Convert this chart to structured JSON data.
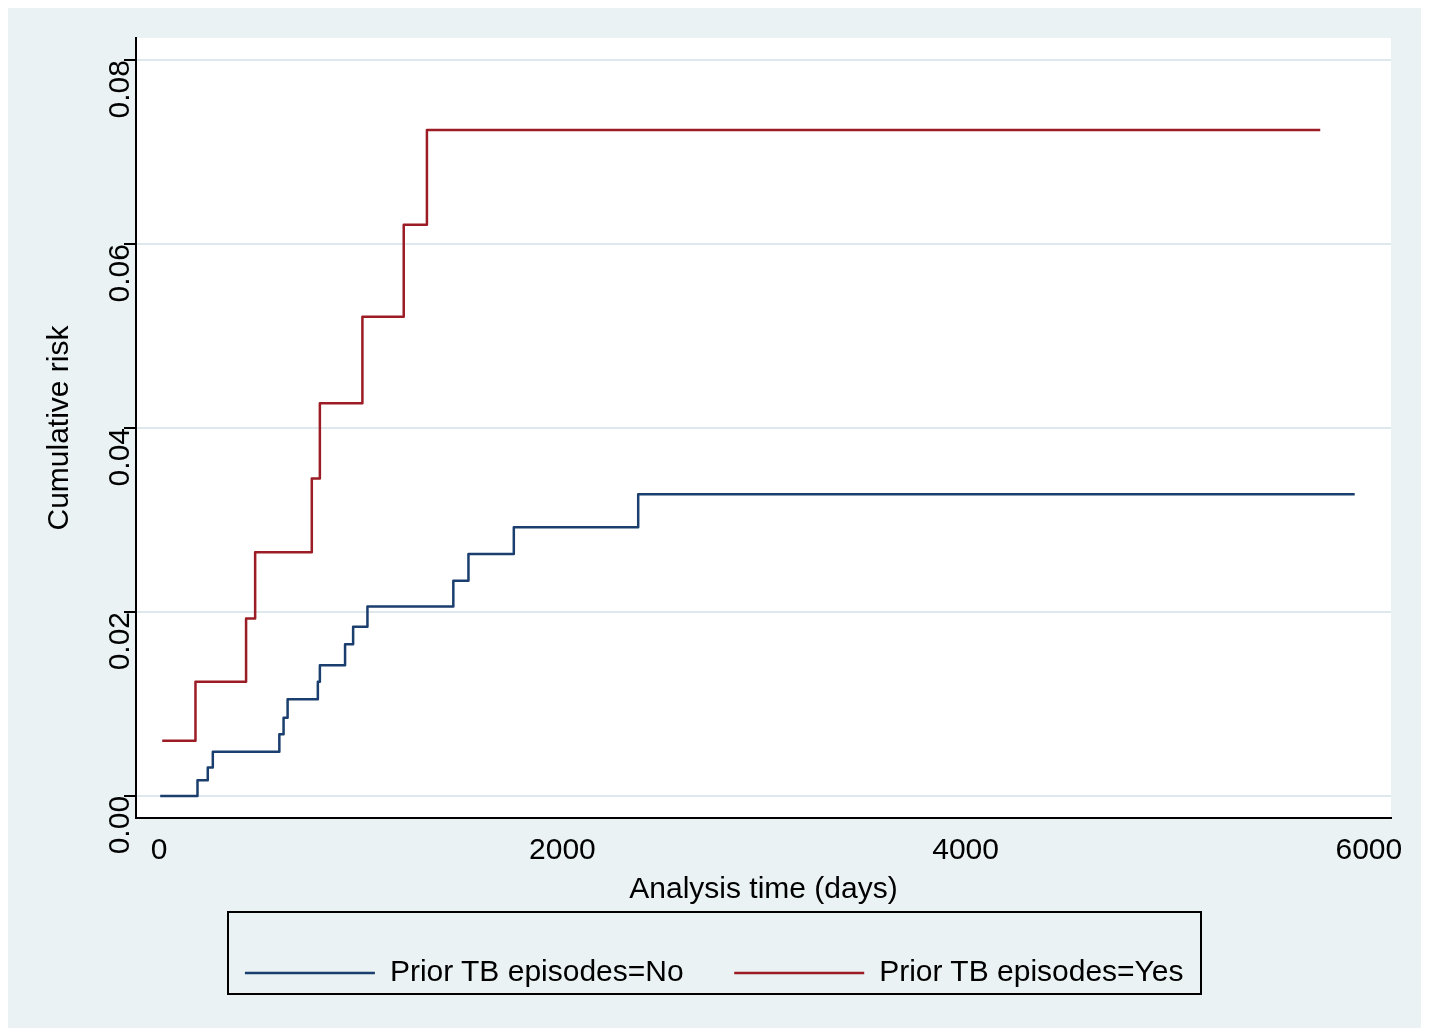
{
  "chart_data": {
    "type": "step",
    "xlabel": "Analysis time (days)",
    "ylabel": "Cumulative risk",
    "xlim": [
      -115,
      6110
    ],
    "xticks": [
      0,
      2000,
      4000,
      6000
    ],
    "ylim": [
      -0.0024,
      0.0824
    ],
    "yticks": [
      {
        "value": 0,
        "label": "0.00"
      },
      0.02,
      0.04,
      0.06,
      0.08
    ],
    "grid": "y",
    "legend": "bottom",
    "line_style": "solid",
    "marker": "none",
    "series": [
      {
        "name": "Prior TB episodes=No",
        "color": "#1a3e6e",
        "x": [
          5,
          190,
          241,
          266,
          596,
          617,
          637,
          787,
          797,
          922,
          962,
          1033,
          1459,
          1534,
          1759,
          2376,
          5930
        ],
        "values": [
          0,
          0.0017,
          0.0031,
          0.0048,
          0.0067,
          0.0085,
          0.0105,
          0.0124,
          0.0142,
          0.0165,
          0.0184,
          0.0206,
          0.0234,
          0.0263,
          0.0292,
          0.0328,
          0.0328
        ]
      },
      {
        "name": "Prior TB episodes=Yes",
        "color": "#9b1c24",
        "x": [
          15,
          180,
          431,
          476,
          757,
          797,
          1008,
          1213,
          1328,
          5759
        ],
        "values": [
          0.006,
          0.0124,
          0.0193,
          0.0265,
          0.0345,
          0.0427,
          0.0521,
          0.0621,
          0.0724,
          0.0724
        ]
      }
    ]
  }
}
